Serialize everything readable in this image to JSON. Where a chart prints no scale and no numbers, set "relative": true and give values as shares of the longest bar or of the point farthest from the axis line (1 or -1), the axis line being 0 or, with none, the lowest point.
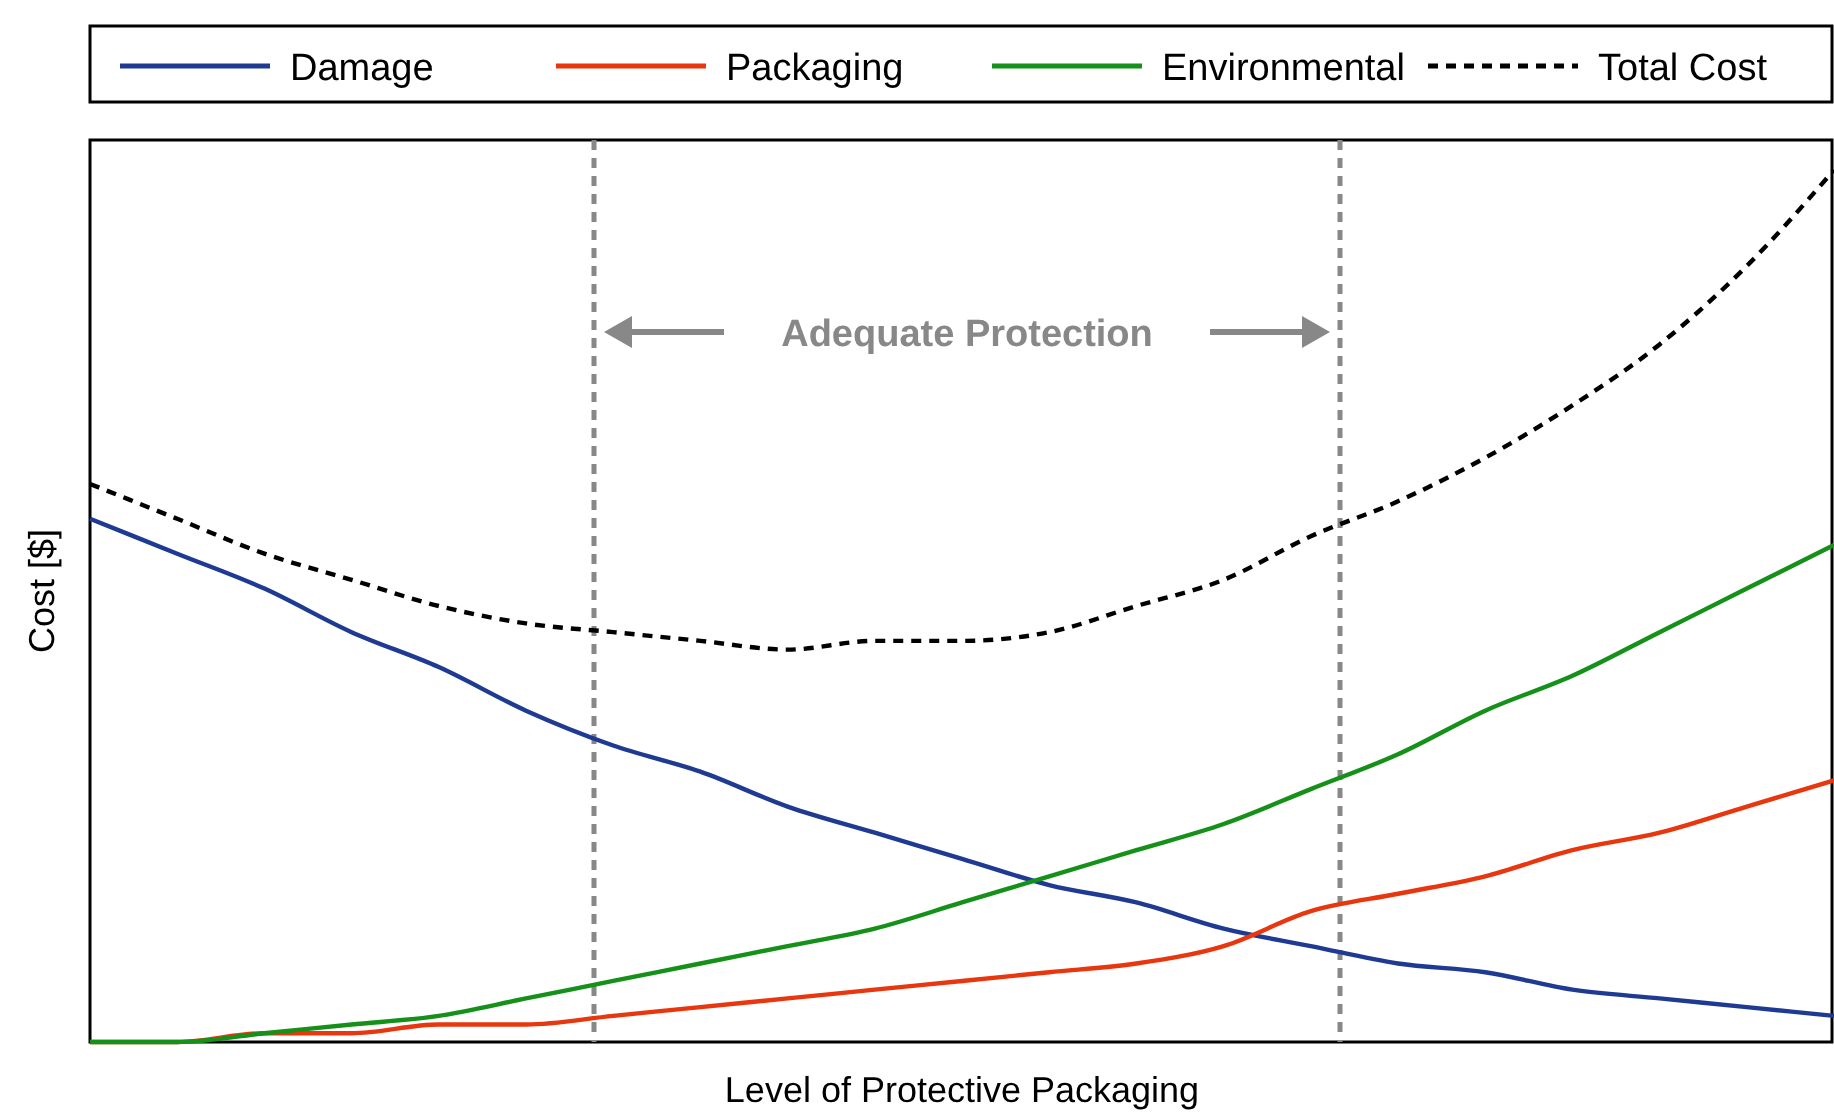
{
  "chart_data": {
    "type": "line",
    "relative": true,
    "xlabel": "Level of Protective Packaging",
    "ylabel": "Cost [$]",
    "categories": [
      null,
      null,
      null,
      null,
      null,
      null,
      null,
      null,
      null,
      null,
      null,
      null,
      null,
      null,
      null,
      null,
      null,
      null,
      null,
      null,
      null
    ],
    "series": [
      {
        "name": "Damage",
        "color": "#1f3a93",
        "values": [
          0.6,
          0.56,
          0.52,
          0.47,
          0.43,
          0.38,
          0.34,
          0.31,
          0.27,
          0.24,
          0.21,
          0.18,
          0.16,
          0.13,
          0.11,
          0.09,
          0.08,
          0.06,
          0.05,
          0.04,
          0.03
        ]
      },
      {
        "name": "Packaging",
        "color": "#e8360e",
        "values": [
          0,
          0,
          0.01,
          0.01,
          0.02,
          0.02,
          0.03,
          0.04,
          0.05,
          0.06,
          0.07,
          0.08,
          0.09,
          0.11,
          0.15,
          0.17,
          0.19,
          0.22,
          0.24,
          0.27,
          0.3
        ]
      },
      {
        "name": "Environmental",
        "color": "#15911a",
        "values": [
          0,
          0,
          0.01,
          0.02,
          0.03,
          0.05,
          0.07,
          0.09,
          0.11,
          0.13,
          0.16,
          0.19,
          0.22,
          0.25,
          0.29,
          0.33,
          0.38,
          0.42,
          0.47,
          0.52,
          0.57
        ]
      },
      {
        "name": "Total Cost",
        "color": "#000000",
        "line_style": "dashed",
        "values": [
          0.64,
          0.6,
          0.56,
          0.53,
          0.5,
          0.48,
          0.47,
          0.46,
          0.45,
          0.46,
          0.46,
          0.47,
          0.5,
          0.53,
          0.58,
          0.62,
          0.67,
          0.73,
          0.8,
          0.89,
          1
        ]
      }
    ],
    "annotations": [
      "Adequate Protection"
    ],
    "legend": "top",
    "grid": false,
    "marker": "none",
    "line_style": "solid"
  }
}
